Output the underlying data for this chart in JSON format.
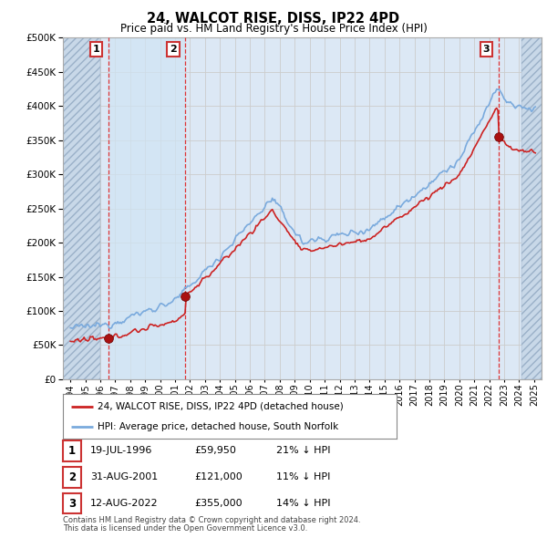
{
  "title": "24, WALCOT RISE, DISS, IP22 4PD",
  "subtitle": "Price paid vs. HM Land Registry's House Price Index (HPI)",
  "legend_line1": "24, WALCOT RISE, DISS, IP22 4PD (detached house)",
  "legend_line2": "HPI: Average price, detached house, South Norfolk",
  "footnote1": "Contains HM Land Registry data © Crown copyright and database right 2024.",
  "footnote2": "This data is licensed under the Open Government Licence v3.0.",
  "transactions": [
    {
      "num": 1,
      "date": "19-JUL-1996",
      "price": "£59,950",
      "hpi": "21% ↓ HPI",
      "x": 1996.54
    },
    {
      "num": 2,
      "date": "31-AUG-2001",
      "price": "£121,000",
      "hpi": "11% ↓ HPI",
      "x": 2001.67
    },
    {
      "num": 3,
      "date": "12-AUG-2022",
      "price": "£355,000",
      "hpi": "14% ↓ HPI",
      "x": 2022.62
    }
  ],
  "transaction_values": [
    59950,
    121000,
    355000
  ],
  "transaction_years": [
    1996.54,
    2001.67,
    2022.62
  ],
  "hpi_color": "#7aaadd",
  "price_color": "#cc2222",
  "marker_color": "#cc2222",
  "grid_color": "#cccccc",
  "plot_bg": "#dce8f5",
  "hatch_bg": "#c8d8e8",
  "shade_between_tx": "#dce8f5",
  "ylim": [
    0,
    500000
  ],
  "xlim_start": 1993.5,
  "xlim_end": 2025.5
}
